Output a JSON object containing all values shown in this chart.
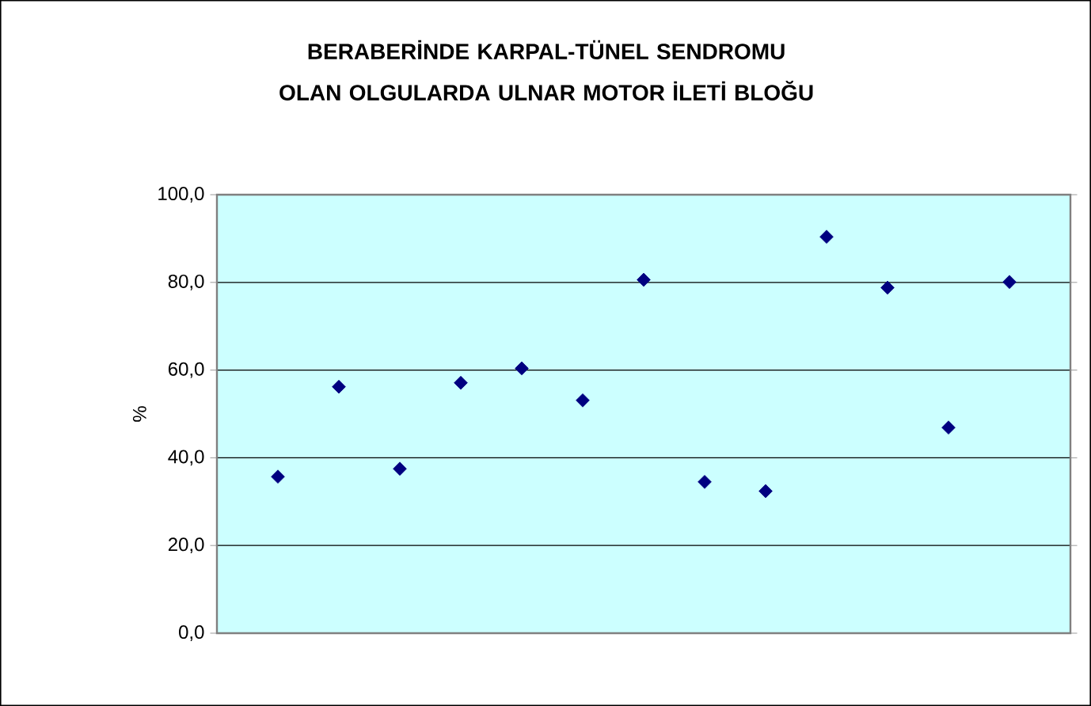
{
  "chart_data": {
    "type": "scatter",
    "title": "BERABERİNDE KARPAL-TÜNEL SENDROMU OLAN OLGULARDA ULNAR MOTOR İLETİ BLOĞU",
    "ylabel": "%",
    "categories": [
      null,
      null,
      null,
      null,
      null,
      null,
      null,
      null,
      null,
      null,
      null,
      null,
      null
    ],
    "series": [
      {
        "color": "#000080",
        "values": [
          35.7,
          56.2,
          37.5,
          57.1,
          60.4,
          53.1,
          80.6,
          34.5,
          32.4,
          90.4,
          78.8,
          46.9,
          80.1
        ]
      }
    ],
    "ylim": [
      0,
      100
    ],
    "yticks": [
      {
        "value": 0,
        "label": "0,0"
      },
      {
        "value": 20,
        "label": "20,0"
      },
      {
        "value": 40,
        "label": "40,0"
      },
      {
        "value": 60,
        "label": "60,0"
      },
      {
        "value": 80,
        "label": "80,0"
      },
      {
        "value": 100,
        "label": "100,0"
      }
    ],
    "grid": "y",
    "marker": "diamond"
  }
}
